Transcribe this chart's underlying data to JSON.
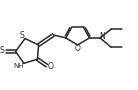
{
  "bg_color": "#ffffff",
  "line_color": "#2a2a2a",
  "line_width": 1.1,
  "figsize": [
    1.38,
    0.9
  ],
  "dpi": 100,
  "xlim": [
    0,
    11
  ],
  "ylim": [
    0,
    7.5
  ]
}
